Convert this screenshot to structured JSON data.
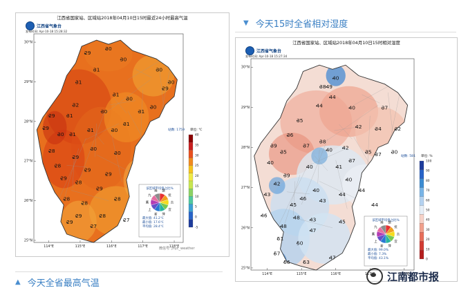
{
  "headings": {
    "humidity": "今天15时全省相对湿度",
    "max_temp": "今天全省最高气温"
  },
  "watermark": {
    "brand": "江南都市报",
    "small": "微信号: jnyc_weather"
  },
  "max_temp_map": {
    "title": "江西省国家站、区域站2018年04月10日15时最近24小时最高气温",
    "logo": "江西省气象台",
    "issued": "发布时间: Apr-10-18 15:28:32",
    "station_count": "站数: 1759",
    "unit": "单位: ℃",
    "lat_labels": [
      "30°N",
      "29°N",
      "28°N",
      "27°N",
      "26°N",
      "25°N"
    ],
    "lon_labels": [
      "114°E",
      "115°E",
      "116°E",
      "117°E",
      "118°E"
    ],
    "legend_ticks": [
      "40",
      "35",
      "30",
      "25",
      "20",
      "15",
      "10",
      "5",
      "0",
      "-5"
    ],
    "legend_colors": [
      "#8b0000",
      "#c81e1e",
      "#e8501e",
      "#f08a1e",
      "#f5c31e",
      "#f0ea46",
      "#c8e650",
      "#8cd264",
      "#50c8a0",
      "#3ca0d2",
      "#2864c8",
      "#1e3c9c"
    ],
    "values": [
      {
        "v": "29",
        "x": 0.36,
        "y": 0.1
      },
      {
        "v": "30",
        "x": 0.5,
        "y": 0.08
      },
      {
        "v": "30",
        "x": 0.6,
        "y": 0.13
      },
      {
        "v": "31",
        "x": 0.42,
        "y": 0.18
      },
      {
        "v": "31",
        "x": 0.3,
        "y": 0.24
      },
      {
        "v": "30",
        "x": 0.84,
        "y": 0.18
      },
      {
        "v": "30",
        "x": 0.92,
        "y": 0.24
      },
      {
        "v": "29",
        "x": 0.88,
        "y": 0.27
      },
      {
        "v": "32",
        "x": 0.28,
        "y": 0.35
      },
      {
        "v": "31",
        "x": 0.24,
        "y": 0.4
      },
      {
        "v": "30",
        "x": 0.47,
        "y": 0.38
      },
      {
        "v": "31",
        "x": 0.55,
        "y": 0.3
      },
      {
        "v": "30",
        "x": 0.64,
        "y": 0.32
      },
      {
        "v": "30",
        "x": 0.8,
        "y": 0.36
      },
      {
        "v": "31",
        "x": 0.72,
        "y": 0.38
      },
      {
        "v": "29",
        "x": 0.12,
        "y": 0.4
      },
      {
        "v": "29",
        "x": 0.08,
        "y": 0.46
      },
      {
        "v": "30",
        "x": 0.18,
        "y": 0.49
      },
      {
        "v": "31",
        "x": 0.26,
        "y": 0.49
      },
      {
        "v": "31",
        "x": 0.38,
        "y": 0.47
      },
      {
        "v": "30",
        "x": 0.54,
        "y": 0.47
      },
      {
        "v": "31",
        "x": 0.62,
        "y": 0.44
      },
      {
        "v": "28",
        "x": 0.12,
        "y": 0.57
      },
      {
        "v": "29",
        "x": 0.28,
        "y": 0.6
      },
      {
        "v": "30",
        "x": 0.4,
        "y": 0.56
      },
      {
        "v": "30",
        "x": 0.56,
        "y": 0.58
      },
      {
        "v": "28",
        "x": 0.16,
        "y": 0.64
      },
      {
        "v": "29",
        "x": 0.36,
        "y": 0.66
      },
      {
        "v": "29",
        "x": 0.5,
        "y": 0.68
      },
      {
        "v": "29",
        "x": 0.2,
        "y": 0.7
      },
      {
        "v": "28",
        "x": 0.3,
        "y": 0.72
      },
      {
        "v": "29",
        "x": 0.44,
        "y": 0.75
      },
      {
        "v": "28",
        "x": 0.22,
        "y": 0.8
      },
      {
        "v": "28",
        "x": 0.34,
        "y": 0.82
      },
      {
        "v": "28",
        "x": 0.56,
        "y": 0.8
      },
      {
        "v": "29",
        "x": 0.3,
        "y": 0.88
      },
      {
        "v": "28",
        "x": 0.46,
        "y": 0.88
      },
      {
        "v": "27",
        "x": 0.4,
        "y": 0.93
      },
      {
        "v": "29",
        "x": 0.24,
        "y": 0.91
      },
      {
        "v": "27",
        "x": 0.62,
        "y": 0.9
      }
    ],
    "pie_title": "该区域平均值占比%",
    "pie_labels": [
      "赣",
      "抚",
      "吉",
      "宜",
      "萍",
      "新",
      "上",
      "鹰",
      "九",
      "南"
    ],
    "stats": [
      "最大值: 41.2℃",
      "最小值: 17.6℃",
      "平均值: 28.4℃"
    ]
  },
  "humidity_map": {
    "title": "江西省国家站、区域站2018年04月10日15时相对湿度",
    "logo": "江西省气象台",
    "issued": "发布时间: Apr-10-18 15:27:34",
    "station_count": "站数: 581",
    "unit": "单位: %",
    "lat_labels": [
      "30°N",
      "29°N",
      "28°N",
      "27°N",
      "26°N",
      "25°N"
    ],
    "lon_labels": [
      "114°E",
      "115°E",
      "116°E",
      "117°E",
      "118°E"
    ],
    "legend_ticks": [
      "100",
      "90",
      "80",
      "70",
      "60",
      "50",
      "40",
      "30",
      "20",
      "10",
      "0"
    ],
    "legend_colors": [
      "#1e3c9c",
      "#2864c8",
      "#3c8cd2",
      "#78b4e6",
      "#b4d2f0",
      "#e6eef6",
      "#f6d2c8",
      "#f0a08c",
      "#e66e5a",
      "#d23c32",
      "#b41e1e"
    ],
    "values": [
      {
        "v": "40",
        "x": 0.52,
        "y": 0.1
      },
      {
        "v": "38",
        "x": 0.44,
        "y": 0.14
      },
      {
        "v": "49",
        "x": 0.48,
        "y": 0.14
      },
      {
        "v": "44",
        "x": 0.5,
        "y": 0.19
      },
      {
        "v": "44",
        "x": 0.42,
        "y": 0.23
      },
      {
        "v": "40",
        "x": 0.62,
        "y": 0.24
      },
      {
        "v": "37",
        "x": 0.82,
        "y": 0.24
      },
      {
        "v": "35",
        "x": 0.3,
        "y": 0.3
      },
      {
        "v": "36",
        "x": 0.24,
        "y": 0.37
      },
      {
        "v": "42",
        "x": 0.66,
        "y": 0.33
      },
      {
        "v": "34",
        "x": 0.78,
        "y": 0.34
      },
      {
        "v": "32",
        "x": 0.9,
        "y": 0.34
      },
      {
        "v": "39",
        "x": 0.14,
        "y": 0.42
      },
      {
        "v": "35",
        "x": 0.2,
        "y": 0.45
      },
      {
        "v": "37",
        "x": 0.34,
        "y": 0.42
      },
      {
        "v": "38",
        "x": 0.44,
        "y": 0.4
      },
      {
        "v": "40",
        "x": 0.48,
        "y": 0.44
      },
      {
        "v": "42",
        "x": 0.58,
        "y": 0.43
      },
      {
        "v": "37",
        "x": 0.62,
        "y": 0.49
      },
      {
        "v": "35",
        "x": 0.72,
        "y": 0.45
      },
      {
        "v": "37",
        "x": 0.78,
        "y": 0.46
      },
      {
        "v": "30",
        "x": 0.88,
        "y": 0.45
      },
      {
        "v": "40",
        "x": 0.12,
        "y": 0.5
      },
      {
        "v": "39",
        "x": 0.22,
        "y": 0.56
      },
      {
        "v": "40",
        "x": 0.36,
        "y": 0.52
      },
      {
        "v": "41",
        "x": 0.54,
        "y": 0.52
      },
      {
        "v": "40",
        "x": 0.6,
        "y": 0.58
      },
      {
        "v": "42",
        "x": 0.16,
        "y": 0.6
      },
      {
        "v": "43",
        "x": 0.1,
        "y": 0.65
      },
      {
        "v": "40",
        "x": 0.4,
        "y": 0.63
      },
      {
        "v": "44",
        "x": 0.56,
        "y": 0.65
      },
      {
        "v": "43",
        "x": 0.44,
        "y": 0.68
      },
      {
        "v": "44",
        "x": 0.68,
        "y": 0.63
      },
      {
        "v": "45",
        "x": 0.26,
        "y": 0.7
      },
      {
        "v": "46",
        "x": 0.32,
        "y": 0.67
      },
      {
        "v": "44",
        "x": 0.76,
        "y": 0.7
      },
      {
        "v": "46",
        "x": 0.08,
        "y": 0.75
      },
      {
        "v": "48",
        "x": 0.2,
        "y": 0.8
      },
      {
        "v": "43",
        "x": 0.38,
        "y": 0.77
      },
      {
        "v": "45",
        "x": 0.56,
        "y": 0.78
      },
      {
        "v": "51",
        "x": 0.18,
        "y": 0.86
      },
      {
        "v": "50",
        "x": 0.3,
        "y": 0.88
      },
      {
        "v": "47",
        "x": 0.38,
        "y": 0.82
      },
      {
        "v": "57",
        "x": 0.16,
        "y": 0.93
      },
      {
        "v": "56",
        "x": 0.22,
        "y": 0.97
      },
      {
        "v": "53",
        "x": 0.34,
        "y": 0.97
      },
      {
        "v": "47",
        "x": 0.5,
        "y": 0.95
      },
      {
        "v": "48",
        "x": 0.28,
        "y": 0.76
      }
    ],
    "pie_title": "该区域平均值占比%",
    "pie_labels": [
      "赣",
      "抚",
      "吉",
      "宜",
      "萍",
      "新",
      "上",
      "鹰",
      "九",
      "南"
    ],
    "stats": [
      "最大值: 99.0%",
      "最小值: 7.3%",
      "平均值: 43.1%"
    ]
  }
}
